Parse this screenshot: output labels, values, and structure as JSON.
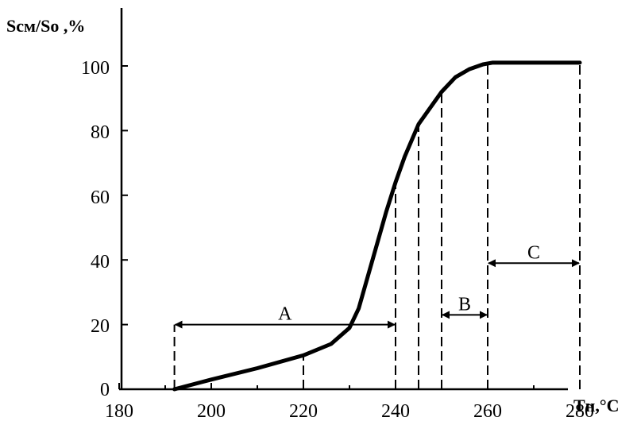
{
  "chart_data": {
    "type": "line",
    "ylabel": "Sсм/Sо ,%",
    "xlabel": "Тн,°С",
    "xlim": [
      180,
      280
    ],
    "ylim": [
      0,
      100
    ],
    "x_ticks": [
      "180",
      "200",
      "220",
      "240",
      "260",
      "280"
    ],
    "y_ticks": [
      "0",
      "20",
      "40",
      "60",
      "80",
      "100"
    ],
    "series": [
      {
        "points": [
          [
            192,
            0
          ],
          [
            200,
            3
          ],
          [
            210,
            6.5
          ],
          [
            220,
            10.5
          ],
          [
            226,
            14
          ],
          [
            230,
            19
          ],
          [
            232,
            25
          ],
          [
            235,
            40
          ],
          [
            238,
            55
          ],
          [
            240,
            64
          ],
          [
            242,
            72
          ],
          [
            245,
            82
          ],
          [
            248,
            88
          ],
          [
            250,
            92
          ],
          [
            253,
            96.5
          ],
          [
            256,
            99
          ],
          [
            259,
            100.5
          ],
          [
            261,
            101
          ],
          [
            270,
            101
          ],
          [
            280,
            101
          ]
        ]
      }
    ],
    "dashed_verticals": [
      {
        "x": 192,
        "y": 20
      },
      {
        "x": 220,
        "y": 10
      },
      {
        "x": 240,
        "y": 64
      },
      {
        "x": 245,
        "y": 82
      },
      {
        "x": 250,
        "y": 92
      },
      {
        "x": 260,
        "y": 101
      },
      {
        "x": 280,
        "y": 101
      }
    ],
    "regions": [
      {
        "label": "А",
        "x_from": 192,
        "x_to": 240,
        "y": 20
      },
      {
        "label": "В",
        "x_from": 250,
        "x_to": 260,
        "y": 23
      },
      {
        "label": "С",
        "x_from": 260,
        "x_to": 280,
        "y": 39
      }
    ],
    "grid": false
  }
}
